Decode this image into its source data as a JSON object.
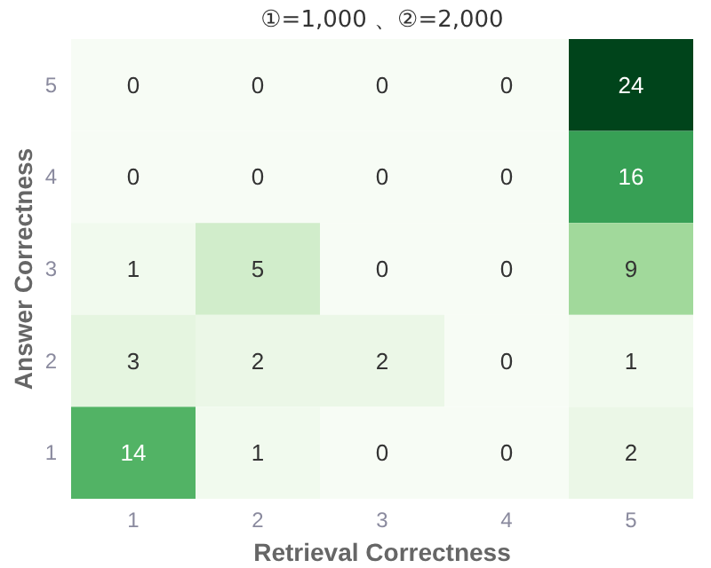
{
  "chart_data": {
    "type": "heatmap",
    "title": "①=1,000 、②=2,000",
    "xlabel": "Retrieval Correctness",
    "ylabel": "Answer Correctness",
    "categories": [
      "1",
      "2",
      "3",
      "4",
      "5"
    ],
    "y_categories": [
      "5",
      "4",
      "3",
      "2",
      "1"
    ],
    "cells": [
      [
        0,
        0,
        0,
        0,
        24
      ],
      [
        0,
        0,
        0,
        0,
        16
      ],
      [
        1,
        5,
        0,
        0,
        9
      ],
      [
        3,
        2,
        2,
        0,
        1
      ],
      [
        14,
        1,
        0,
        0,
        2
      ]
    ],
    "data_labels": true
  }
}
